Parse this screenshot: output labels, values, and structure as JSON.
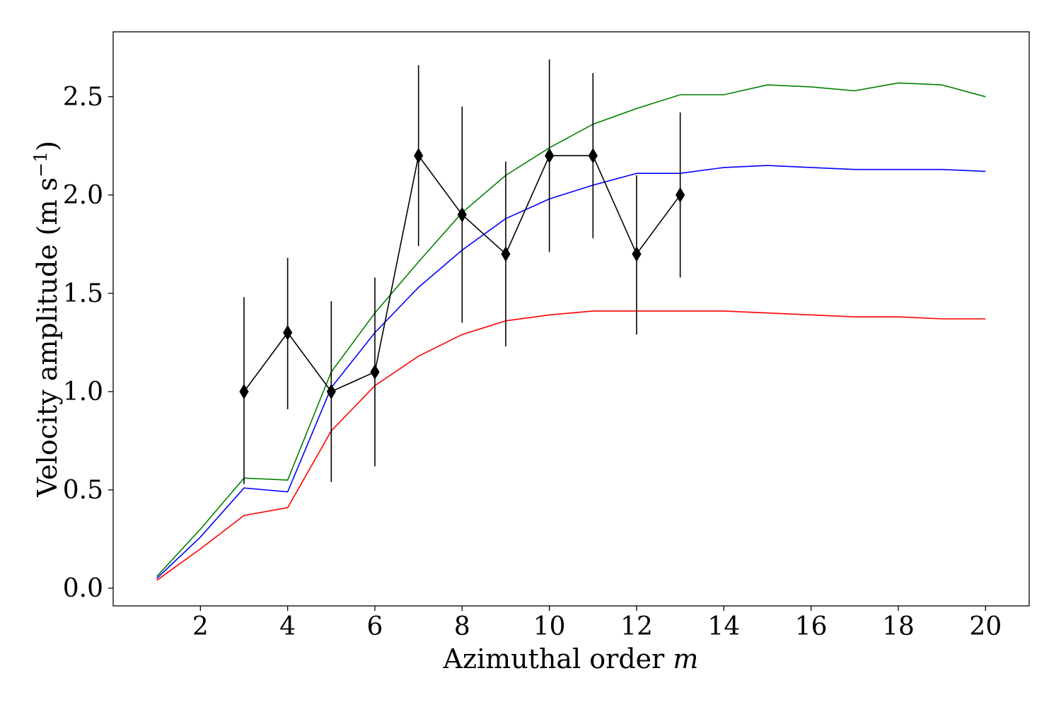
{
  "chart_data": {
    "type": "line",
    "title": "",
    "xlabel": "Azimuthal order ",
    "xlabel_var": "m",
    "ylabel": "Velocity amplitude (m s",
    "ylabel_sup": "−1",
    "ylabel_end": ")",
    "xlim": [
      0,
      21
    ],
    "ylim": [
      -0.09,
      2.83
    ],
    "xticks": [
      2,
      4,
      6,
      8,
      10,
      12,
      14,
      16,
      18,
      20
    ],
    "yticks": [
      0.0,
      0.5,
      1.0,
      1.5,
      2.0,
      2.5
    ],
    "xtick_labels": [
      "2",
      "4",
      "6",
      "8",
      "10",
      "12",
      "14",
      "16",
      "18",
      "20"
    ],
    "ytick_labels": [
      "0.0",
      "0.5",
      "1.0",
      "1.5",
      "2.0",
      "2.5"
    ],
    "grid": false,
    "legend": "none",
    "series": [
      {
        "color": "#008000",
        "style": "line",
        "x": [
          1,
          2,
          3,
          4,
          5,
          6,
          7,
          8,
          9,
          10,
          11,
          12,
          13,
          14,
          15,
          16,
          17,
          18,
          19,
          20
        ],
        "y": [
          0.06,
          0.3,
          0.56,
          0.55,
          1.1,
          1.4,
          1.66,
          1.91,
          2.1,
          2.24,
          2.36,
          2.44,
          2.51,
          2.51,
          2.56,
          2.55,
          2.53,
          2.57,
          2.56,
          2.5
        ]
      },
      {
        "color": "#0000ff",
        "style": "line",
        "x": [
          1,
          2,
          3,
          4,
          5,
          6,
          7,
          8,
          9,
          10,
          11,
          12,
          13,
          14,
          15,
          16,
          17,
          18,
          19,
          20
        ],
        "y": [
          0.05,
          0.26,
          0.51,
          0.49,
          1.02,
          1.3,
          1.53,
          1.72,
          1.88,
          1.98,
          2.05,
          2.11,
          2.11,
          2.14,
          2.15,
          2.14,
          2.13,
          2.13,
          2.13,
          2.12
        ]
      },
      {
        "color": "#ff0000",
        "style": "line",
        "x": [
          1,
          2,
          3,
          4,
          5,
          6,
          7,
          8,
          9,
          10,
          11,
          12,
          13,
          14,
          15,
          16,
          17,
          18,
          19,
          20
        ],
        "y": [
          0.04,
          0.2,
          0.37,
          0.41,
          0.8,
          1.03,
          1.18,
          1.29,
          1.36,
          1.39,
          1.41,
          1.41,
          1.41,
          1.41,
          1.4,
          1.39,
          1.38,
          1.38,
          1.37,
          1.37
        ]
      },
      {
        "color": "#000000",
        "style": "line-markers-errorbars",
        "marker": "thin_diamond",
        "x": [
          3,
          4,
          5,
          6,
          7,
          8,
          9,
          10,
          11,
          12,
          13
        ],
        "y": [
          1.0,
          1.3,
          1.0,
          1.1,
          2.2,
          1.9,
          1.7,
          2.2,
          2.2,
          1.7,
          2.0
        ],
        "yerr_low": [
          0.47,
          0.39,
          0.46,
          0.48,
          0.46,
          0.55,
          0.47,
          0.49,
          0.42,
          0.41,
          0.42
        ],
        "yerr_high": [
          0.48,
          0.38,
          0.46,
          0.48,
          0.46,
          0.55,
          0.47,
          0.49,
          0.42,
          0.4,
          0.42
        ]
      }
    ]
  }
}
